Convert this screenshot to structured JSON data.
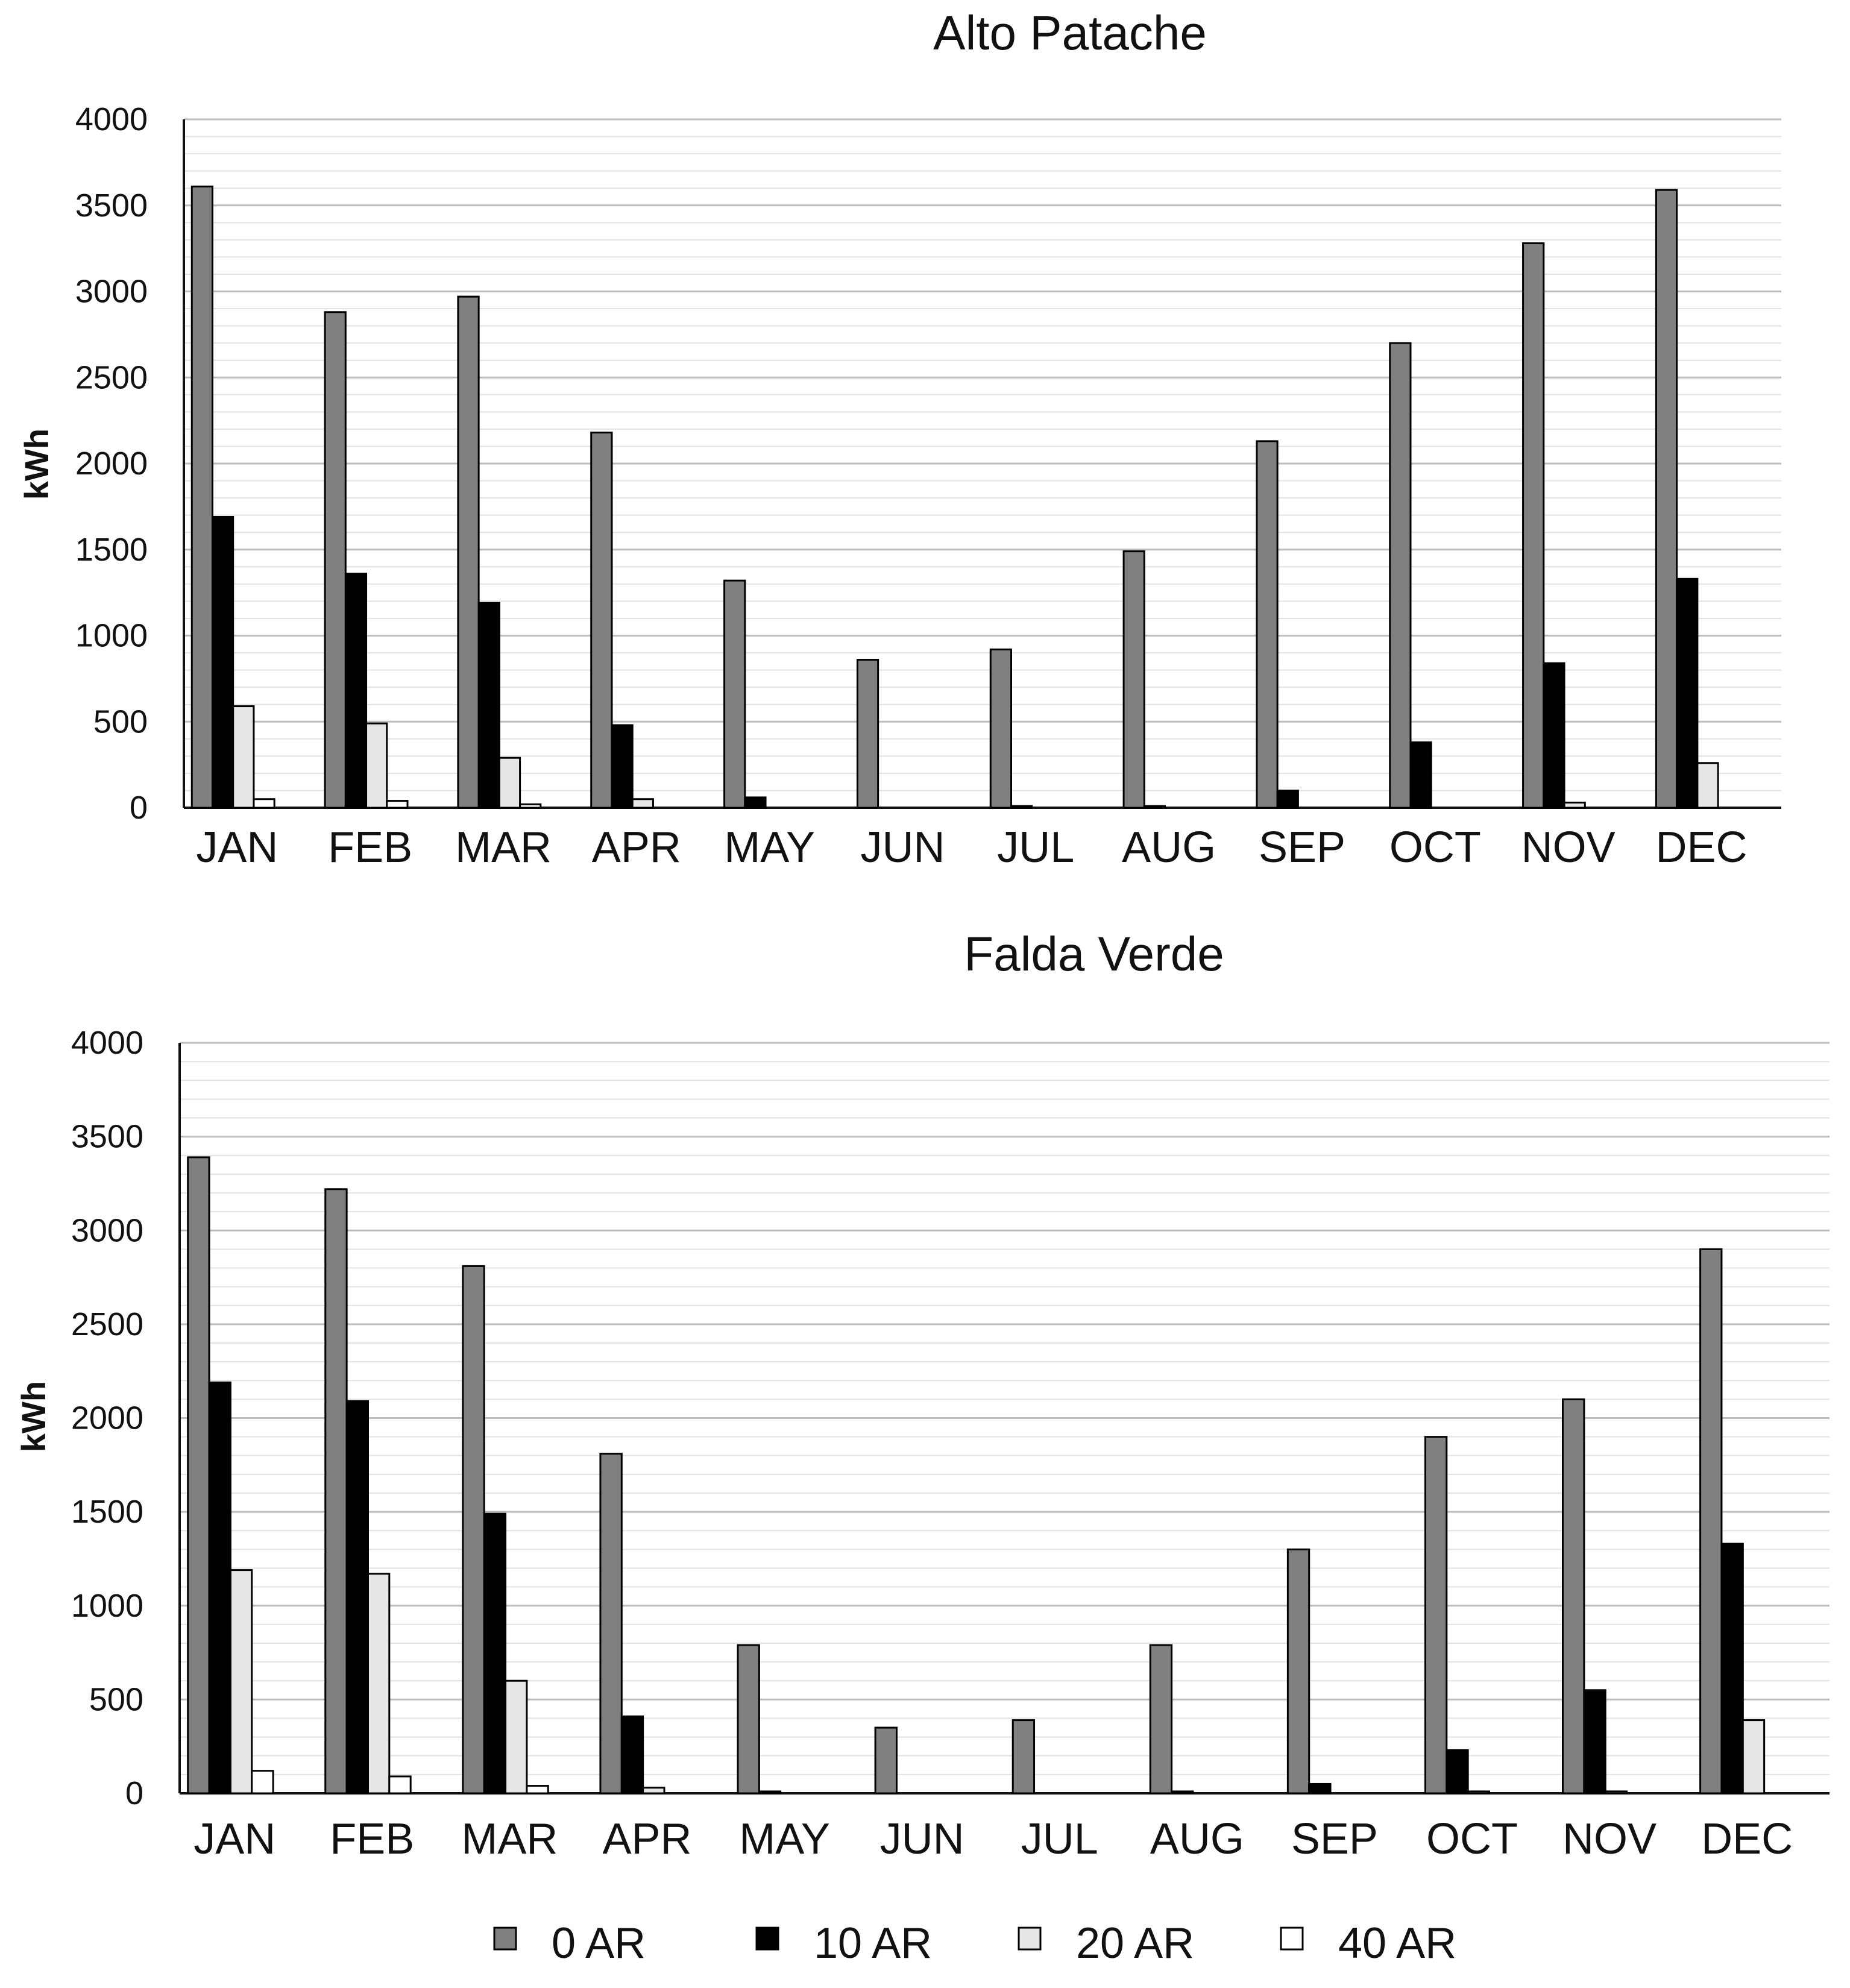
{
  "chart_data": [
    {
      "type": "bar",
      "title": "Alto Patache",
      "xlabel": "",
      "ylabel": "kWh",
      "ylim": [
        0,
        4000
      ],
      "yticks": [
        0,
        500,
        1000,
        1500,
        2000,
        2500,
        3000,
        3500,
        4000
      ],
      "grid": true,
      "categories": [
        "JAN",
        "FEB",
        "MAR",
        "APR",
        "MAY",
        "JUN",
        "JUL",
        "AUG",
        "SEP",
        "OCT",
        "NOV",
        "DEC"
      ],
      "series": [
        {
          "name": "0 AR",
          "color": "#808080",
          "values": [
            3610,
            2880,
            2970,
            2180,
            1320,
            860,
            920,
            1490,
            2130,
            2700,
            3280,
            3590
          ]
        },
        {
          "name": "10 AR",
          "color": "#000000",
          "values": [
            1690,
            1360,
            1190,
            480,
            60,
            0,
            10,
            10,
            100,
            380,
            840,
            1330
          ]
        },
        {
          "name": "20 AR",
          "color": "#e6e6e6",
          "values": [
            590,
            490,
            290,
            50,
            0,
            0,
            0,
            0,
            0,
            0,
            30,
            260
          ]
        },
        {
          "name": "40 AR",
          "color": "#ffffff",
          "values": [
            50,
            40,
            20,
            0,
            0,
            0,
            0,
            0,
            0,
            0,
            0,
            0
          ]
        }
      ]
    },
    {
      "type": "bar",
      "title": "Falda Verde",
      "xlabel": "",
      "ylabel": "kWh",
      "ylim": [
        0,
        4000
      ],
      "yticks": [
        0,
        500,
        1000,
        1500,
        2000,
        2500,
        3000,
        3500,
        4000
      ],
      "grid": true,
      "categories": [
        "JAN",
        "FEB",
        "MAR",
        "APR",
        "MAY",
        "JUN",
        "JUL",
        "AUG",
        "SEP",
        "OCT",
        "NOV",
        "DEC"
      ],
      "series": [
        {
          "name": "0 AR",
          "color": "#808080",
          "values": [
            3390,
            3220,
            2810,
            1810,
            790,
            350,
            390,
            790,
            1300,
            1900,
            2100,
            2900
          ]
        },
        {
          "name": "10 AR",
          "color": "#000000",
          "values": [
            2190,
            2090,
            1490,
            410,
            10,
            0,
            0,
            10,
            50,
            230,
            550,
            1330
          ]
        },
        {
          "name": "20 AR",
          "color": "#e6e6e6",
          "values": [
            1190,
            1170,
            600,
            30,
            0,
            0,
            0,
            0,
            0,
            10,
            10,
            390
          ]
        },
        {
          "name": "40 AR",
          "color": "#ffffff",
          "values": [
            120,
            90,
            40,
            0,
            0,
            0,
            0,
            0,
            0,
            0,
            0,
            0
          ]
        }
      ]
    }
  ],
  "legend": {
    "placement": "bottom",
    "items": [
      {
        "label": "0 AR",
        "color": "#808080"
      },
      {
        "label": "10 AR",
        "color": "#000000"
      },
      {
        "label": "20 AR",
        "color": "#e6e6e6"
      },
      {
        "label": "40 AR",
        "color": "#ffffff"
      }
    ]
  }
}
